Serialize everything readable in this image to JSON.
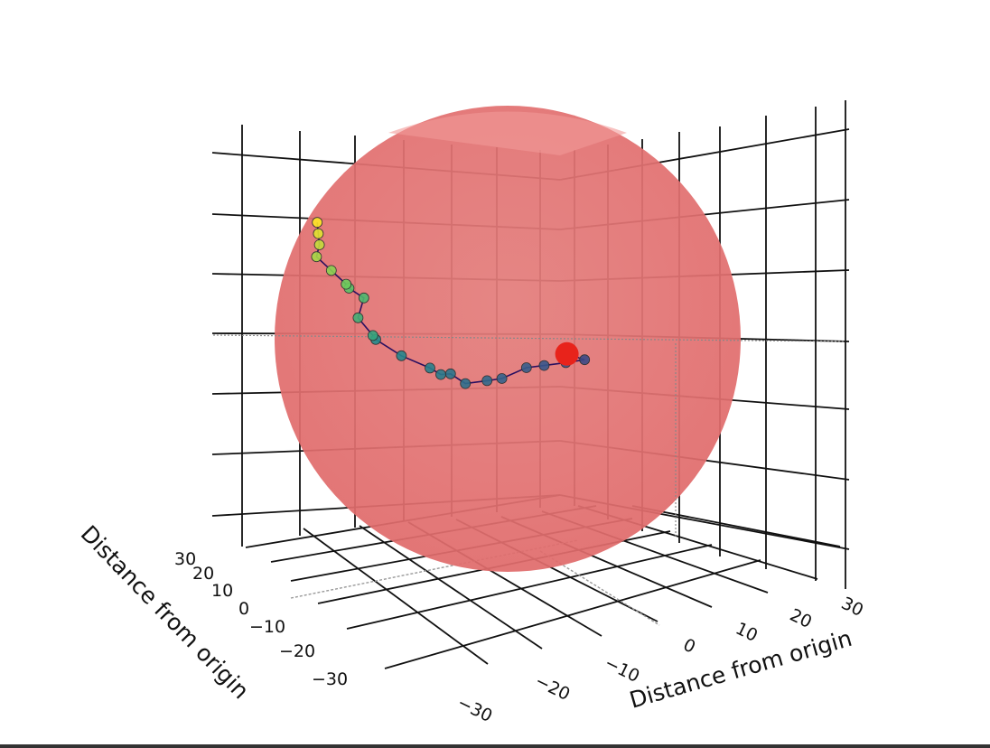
{
  "chart_data": {
    "type": "scatter",
    "title": "",
    "xlabel": "Distance from origin",
    "ylabel": "Distance from origin",
    "zlabel": "",
    "xlim": [
      -35,
      35
    ],
    "ylim": [
      -35,
      35
    ],
    "zlim": [
      -35,
      35
    ],
    "x_ticks": [
      -30,
      -20,
      -10,
      0,
      10,
      20,
      30
    ],
    "y_ticks": [
      -30,
      -20,
      -10,
      0,
      10,
      20,
      30
    ],
    "x_tick_labels": [
      "−30",
      "−20",
      "−10",
      "0",
      "10",
      "20",
      "30"
    ],
    "y_tick_labels": [
      "−30",
      "−20",
      "−10",
      "0",
      "10",
      "20",
      "30"
    ],
    "grid": true,
    "colorscale": [
      "#440154",
      "#3b528b",
      "#21908d",
      "#5dc962",
      "#fde725"
    ],
    "series": [
      {
        "type": "scatter3d-lines+markers",
        "marker_colors_by": "step",
        "x": [
          4,
          6,
          5,
          3,
          1,
          -2,
          -3,
          -5,
          -6,
          -8,
          -9,
          -12,
          -14,
          -15,
          -16,
          -14,
          -15,
          -16,
          -17,
          -18,
          -17,
          -16,
          -15
        ],
        "y": [
          8,
          9,
          6,
          4,
          3,
          2,
          0,
          -2,
          -4,
          -3,
          -4,
          -6,
          -9,
          -8,
          -10,
          -12,
          -14,
          -13,
          -15,
          -17,
          -18,
          -20,
          -22
        ],
        "z": [
          2,
          1,
          -2,
          -4,
          -5,
          -8,
          -10,
          -12,
          -11,
          -10,
          -9,
          -7,
          -5,
          -3,
          0,
          3,
          4,
          6,
          8,
          10,
          12,
          13,
          14
        ]
      },
      {
        "type": "scatter3d-marker",
        "name": "",
        "color": "#e8231b",
        "x": [
          4
        ],
        "y": [
          8
        ],
        "z": [
          2
        ]
      },
      {
        "type": "sphere",
        "color": "#e06060",
        "opacity": 0.75,
        "center": [
          0,
          0,
          0
        ],
        "radius": 32
      }
    ]
  }
}
